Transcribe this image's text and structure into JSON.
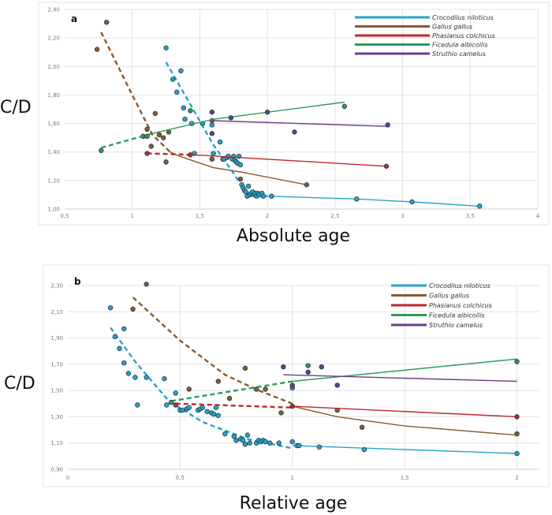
{
  "chart_data": [
    {
      "type": "scatter",
      "panel_label": "a",
      "xlabel": "Absolute age",
      "ylabel": "C/D",
      "xlim": [
        0.5,
        4
      ],
      "ylim": [
        1.0,
        2.4
      ],
      "xticks": [
        0.5,
        1,
        1.5,
        2,
        2.5,
        3,
        3.5,
        4
      ],
      "xtick_labels": [
        "0,5",
        "1",
        "1,5",
        "2",
        "2,5",
        "3",
        "3,5",
        "4"
      ],
      "yticks": [
        1.0,
        1.2,
        1.4,
        1.6,
        1.8,
        2.0,
        2.2,
        2.4
      ],
      "ytick_labels": [
        "1,00",
        "1,20",
        "1,40",
        "1,60",
        "1,80",
        "2,00",
        "2,20",
        "2,40"
      ],
      "grid": true,
      "legend_position": "top-right",
      "series": [
        {
          "name": "Crocodilus niloticus",
          "color": "#2aa3c6",
          "points": [
            [
              1.25,
              2.13
            ],
            [
              1.36,
              1.97
            ],
            [
              1.3,
              1.91
            ],
            [
              1.33,
              1.82
            ],
            [
              1.38,
              1.71
            ],
            [
              1.39,
              1.63
            ],
            [
              1.44,
              1.6
            ],
            [
              1.52,
              1.6
            ],
            [
              1.59,
              1.59
            ],
            [
              1.46,
              1.39
            ],
            [
              1.6,
              1.39
            ],
            [
              1.65,
              1.47
            ],
            [
              1.67,
              1.35
            ],
            [
              1.68,
              1.35
            ],
            [
              1.7,
              1.36
            ],
            [
              1.71,
              1.37
            ],
            [
              1.74,
              1.35
            ],
            [
              1.75,
              1.37
            ],
            [
              1.76,
              1.34
            ],
            [
              1.77,
              1.33
            ],
            [
              1.78,
              1.32
            ],
            [
              1.79,
              1.37
            ],
            [
              1.8,
              1.31
            ],
            [
              1.81,
              1.17
            ],
            [
              1.82,
              1.15
            ],
            [
              1.83,
              1.13
            ],
            [
              1.84,
              1.12
            ],
            [
              1.85,
              1.09
            ],
            [
              1.86,
              1.16
            ],
            [
              1.87,
              1.1
            ],
            [
              1.88,
              1.11
            ],
            [
              1.89,
              1.12
            ],
            [
              1.9,
              1.1
            ],
            [
              1.91,
              1.11
            ],
            [
              1.92,
              1.09
            ],
            [
              1.93,
              1.11
            ],
            [
              1.94,
              1.1
            ],
            [
              1.96,
              1.11
            ],
            [
              1.97,
              1.09
            ],
            [
              2.03,
              1.09
            ],
            [
              2.66,
              1.07
            ],
            [
              3.07,
              1.05
            ],
            [
              3.57,
              1.02
            ]
          ],
          "trend_dashed": [
            [
              1.25,
              2.03
            ],
            [
              1.45,
              1.7
            ],
            [
              1.6,
              1.45
            ],
            [
              1.75,
              1.25
            ],
            [
              1.85,
              1.1
            ],
            [
              2.0,
              1.09
            ]
          ],
          "trend_solid": [
            [
              2.0,
              1.09
            ],
            [
              2.66,
              1.07
            ],
            [
              3.07,
              1.05
            ],
            [
              3.57,
              1.02
            ]
          ]
        },
        {
          "name": "Gallus gallus",
          "color": "#8b5a2b",
          "points": [
            [
              0.81,
              2.31
            ],
            [
              0.74,
              2.12
            ],
            [
              1.17,
              1.67
            ],
            [
              1.11,
              1.56
            ],
            [
              1.27,
              1.54
            ],
            [
              1.08,
              1.51
            ],
            [
              1.2,
              1.52
            ],
            [
              1.23,
              1.5
            ],
            [
              1.14,
              1.44
            ],
            [
              1.25,
              1.33
            ],
            [
              1.59,
              1.35
            ],
            [
              1.59,
              1.62
            ],
            [
              1.8,
              1.21
            ],
            [
              2.29,
              1.17
            ]
          ],
          "trend_dashed": [
            [
              0.77,
              2.24
            ],
            [
              1.0,
              1.8
            ],
            [
              1.15,
              1.52
            ],
            [
              1.28,
              1.4
            ]
          ],
          "trend_solid": [
            [
              1.28,
              1.4
            ],
            [
              1.35,
              1.37
            ],
            [
              1.6,
              1.29
            ],
            [
              1.8,
              1.26
            ],
            [
              2.29,
              1.17
            ]
          ]
        },
        {
          "name": "Phasianus colchicus",
          "color": "#c0272d",
          "points": [
            [
              1.11,
              1.39
            ],
            [
              1.43,
              1.38
            ],
            [
              2.88,
              1.3
            ]
          ],
          "trend_dashed": [
            [
              1.11,
              1.39
            ],
            [
              1.45,
              1.38
            ]
          ],
          "trend_solid": [
            [
              1.45,
              1.38
            ],
            [
              2.88,
              1.3
            ]
          ]
        },
        {
          "name": "Ficedula albicollis",
          "color": "#2e9a5a",
          "points": [
            [
              0.77,
              1.41
            ],
            [
              1.11,
              1.51
            ],
            [
              1.43,
              1.69
            ],
            [
              2.57,
              1.72
            ]
          ],
          "trend_dashed": [
            [
              0.77,
              1.43
            ],
            [
              1.15,
              1.53
            ]
          ],
          "trend_solid": [
            [
              1.15,
              1.53
            ],
            [
              1.6,
              1.63
            ],
            [
              2.57,
              1.75
            ]
          ]
        },
        {
          "name": "Struthio camelus",
          "color": "#6a3d8a",
          "points": [
            [
              1.59,
              1.68
            ],
            [
              1.59,
              1.53
            ],
            [
              1.73,
              1.64
            ],
            [
              2.0,
              1.68
            ],
            [
              2.2,
              1.54
            ],
            [
              2.89,
              1.59
            ]
          ],
          "trend_dashed": [],
          "trend_solid": [
            [
              1.59,
              1.62
            ],
            [
              2.89,
              1.58
            ]
          ]
        }
      ]
    },
    {
      "type": "scatter",
      "panel_label": "b",
      "xlabel": "Relative age",
      "ylabel": "C/D",
      "xlim": [
        0,
        2.1
      ],
      "ylim": [
        0.9,
        2.3
      ],
      "xticks": [
        0,
        0.5,
        1,
        1.5,
        2
      ],
      "xtick_labels": [
        "0",
        "0,5",
        "1",
        "1,5",
        "2"
      ],
      "yticks": [
        0.9,
        1.1,
        1.3,
        1.5,
        1.7,
        1.9,
        2.1,
        2.3
      ],
      "ytick_labels": [
        "0,90",
        "1,10",
        "1,30",
        "1,50",
        "1,70",
        "1,90",
        "2,10",
        "2,30"
      ],
      "grid": true,
      "legend_position": "top-right",
      "series": [
        {
          "name": "Crocodilus niloticus",
          "color": "#2aa3c6",
          "points": [
            [
              0.19,
              2.13
            ],
            [
              0.25,
              1.97
            ],
            [
              0.21,
              1.91
            ],
            [
              0.23,
              1.82
            ],
            [
              0.25,
              1.71
            ],
            [
              0.27,
              1.63
            ],
            [
              0.3,
              1.6
            ],
            [
              0.35,
              1.6
            ],
            [
              0.43,
              1.59
            ],
            [
              0.31,
              1.39
            ],
            [
              0.44,
              1.39
            ],
            [
              0.48,
              1.48
            ],
            [
              0.5,
              1.35
            ],
            [
              0.51,
              1.35
            ],
            [
              0.53,
              1.36
            ],
            [
              0.54,
              1.37
            ],
            [
              0.58,
              1.35
            ],
            [
              0.59,
              1.36
            ],
            [
              0.6,
              1.37
            ],
            [
              0.62,
              1.34
            ],
            [
              0.64,
              1.33
            ],
            [
              0.65,
              1.32
            ],
            [
              0.66,
              1.37
            ],
            [
              0.67,
              1.31
            ],
            [
              0.7,
              1.17
            ],
            [
              0.74,
              1.15
            ],
            [
              0.75,
              1.12
            ],
            [
              0.77,
              1.13
            ],
            [
              0.78,
              1.12
            ],
            [
              0.79,
              1.09
            ],
            [
              0.8,
              1.16
            ],
            [
              0.81,
              1.1
            ],
            [
              0.84,
              1.1
            ],
            [
              0.85,
              1.12
            ],
            [
              0.86,
              1.11
            ],
            [
              0.87,
              1.12
            ],
            [
              0.88,
              1.11
            ],
            [
              0.9,
              1.1
            ],
            [
              0.94,
              1.1
            ],
            [
              1.0,
              1.11
            ],
            [
              1.02,
              1.08
            ],
            [
              1.03,
              1.08
            ],
            [
              1.12,
              1.07
            ],
            [
              1.32,
              1.05
            ],
            [
              2.0,
              1.02
            ]
          ],
          "trend_dashed": [
            [
              0.19,
              1.98
            ],
            [
              0.3,
              1.72
            ],
            [
              0.45,
              1.42
            ],
            [
              0.6,
              1.26
            ],
            [
              0.8,
              1.13
            ],
            [
              1.0,
              1.06
            ]
          ],
          "trend_solid": [
            [
              1.0,
              1.08
            ],
            [
              1.5,
              1.05
            ],
            [
              2.0,
              1.02
            ]
          ]
        },
        {
          "name": "Gallus gallus",
          "color": "#8b5a2b",
          "points": [
            [
              0.35,
              2.31
            ],
            [
              0.29,
              2.12
            ],
            [
              0.79,
              1.67
            ],
            [
              0.67,
              1.57
            ],
            [
              0.84,
              1.51
            ],
            [
              0.88,
              1.51
            ],
            [
              0.54,
              1.51
            ],
            [
              0.72,
              1.44
            ],
            [
              0.95,
              1.33
            ],
            [
              1.2,
              1.35
            ],
            [
              1.31,
              1.22
            ],
            [
              2.0,
              1.17
            ]
          ],
          "trend_dashed": [
            [
              0.29,
              2.21
            ],
            [
              0.5,
              1.88
            ],
            [
              0.7,
              1.62
            ],
            [
              0.85,
              1.5
            ],
            [
              1.0,
              1.4
            ]
          ],
          "trend_solid": [
            [
              1.0,
              1.38
            ],
            [
              1.2,
              1.3
            ],
            [
              1.5,
              1.23
            ],
            [
              2.0,
              1.16
            ]
          ]
        },
        {
          "name": "Phasianus colchicus",
          "color": "#c0272d",
          "points": [
            [
              0.48,
              1.39
            ],
            [
              1.0,
              1.38
            ],
            [
              2.0,
              1.3
            ]
          ],
          "trend_dashed": [
            [
              0.48,
              1.4
            ],
            [
              1.0,
              1.37
            ]
          ],
          "trend_solid": [
            [
              1.0,
              1.38
            ],
            [
              2.0,
              1.3
            ]
          ]
        },
        {
          "name": "Ficedula albicollis",
          "color": "#2e9a5a",
          "points": [
            [
              0.46,
              1.41
            ],
            [
              1.0,
              1.52
            ],
            [
              1.07,
              1.69
            ],
            [
              2.0,
              1.72
            ]
          ],
          "trend_dashed": [
            [
              0.46,
              1.42
            ],
            [
              1.0,
              1.57
            ]
          ],
          "trend_solid": [
            [
              1.0,
              1.57
            ],
            [
              2.0,
              1.74
            ]
          ]
        },
        {
          "name": "Struthio camelus",
          "color": "#6a3d8a",
          "points": [
            [
              0.96,
              1.68
            ],
            [
              1.0,
              1.54
            ],
            [
              1.07,
              1.64
            ],
            [
              1.13,
              1.68
            ],
            [
              1.2,
              1.54
            ]
          ],
          "trend_dashed": [],
          "trend_solid": [
            [
              0.96,
              1.62
            ],
            [
              2.0,
              1.57
            ]
          ]
        }
      ]
    }
  ]
}
